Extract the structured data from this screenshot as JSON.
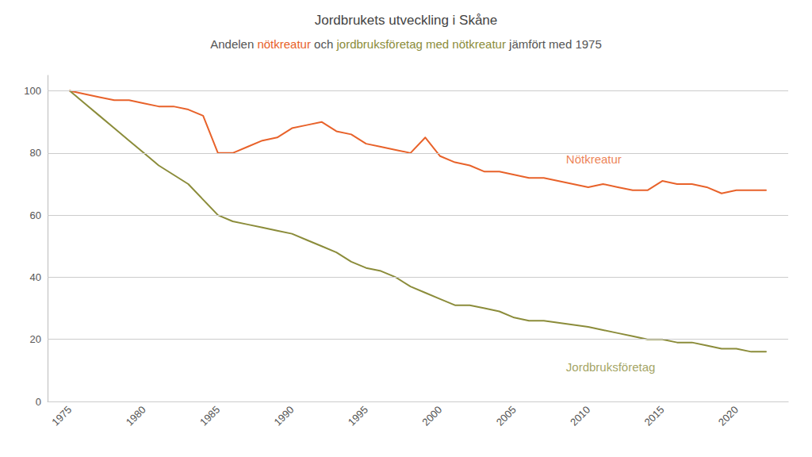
{
  "chart_data": {
    "type": "line",
    "title": "Jordbrukets utveckling i Skåne",
    "subtitle": [
      {
        "text": "Andelen ",
        "color": "#555555"
      },
      {
        "text": "nötkreatur",
        "color": "#E8622A"
      },
      {
        "text": " och ",
        "color": "#555555"
      },
      {
        "text": "jordbruksföretag med nötkreatur",
        "color": "#8B8C3A"
      },
      {
        "text": " jämfört med 1975",
        "color": "#555555"
      }
    ],
    "x": [
      1975,
      1976,
      1977,
      1978,
      1979,
      1980,
      1981,
      1982,
      1983,
      1984,
      1985,
      1986,
      1987,
      1988,
      1989,
      1990,
      1991,
      1992,
      1993,
      1994,
      1995,
      1996,
      1997,
      1998,
      1999,
      2000,
      2001,
      2002,
      2003,
      2004,
      2005,
      2006,
      2007,
      2010,
      2011,
      2012,
      2013,
      2014,
      2015,
      2016,
      2017,
      2018,
      2019,
      2020,
      2021,
      2022
    ],
    "series": [
      {
        "color": "#E8622A",
        "values": [
          100,
          99,
          98,
          97,
          97,
          96,
          95,
          95,
          94,
          92,
          80,
          80,
          82,
          84,
          85,
          88,
          89,
          90,
          87,
          86,
          83,
          82,
          81,
          80,
          85,
          79,
          77,
          76,
          74,
          74,
          73,
          72,
          72,
          69,
          70,
          69,
          68,
          68,
          71,
          70,
          70,
          69,
          67,
          68,
          68,
          68
        ]
      },
      {
        "color": "#8B8C3A",
        "values": [
          100,
          96,
          92,
          88,
          84,
          80,
          76,
          73,
          70,
          65,
          60,
          58,
          57,
          56,
          55,
          54,
          52,
          50,
          48,
          45,
          43,
          42,
          40,
          37,
          35,
          33,
          31,
          31,
          30,
          29,
          27,
          26,
          26,
          24,
          23,
          22,
          21,
          20,
          20,
          19,
          19,
          18,
          17,
          17,
          16,
          16
        ]
      }
    ],
    "annotations": [
      {
        "text": "Nötkreatur",
        "x": 2008.5,
        "y": 78,
        "color": "#E8622A"
      },
      {
        "text": "Jordbruksföretag",
        "x": 2008.5,
        "y": 11,
        "color": "#8B8C3A"
      }
    ],
    "xlim": [
      1973.5,
      2023.5
    ],
    "xticks": [
      1975,
      1980,
      1985,
      1990,
      1995,
      2000,
      2005,
      2010,
      2015,
      2020
    ],
    "ylim": [
      0,
      105
    ],
    "yticks": [
      0,
      20,
      40,
      60,
      80,
      100
    ],
    "grid": true
  }
}
